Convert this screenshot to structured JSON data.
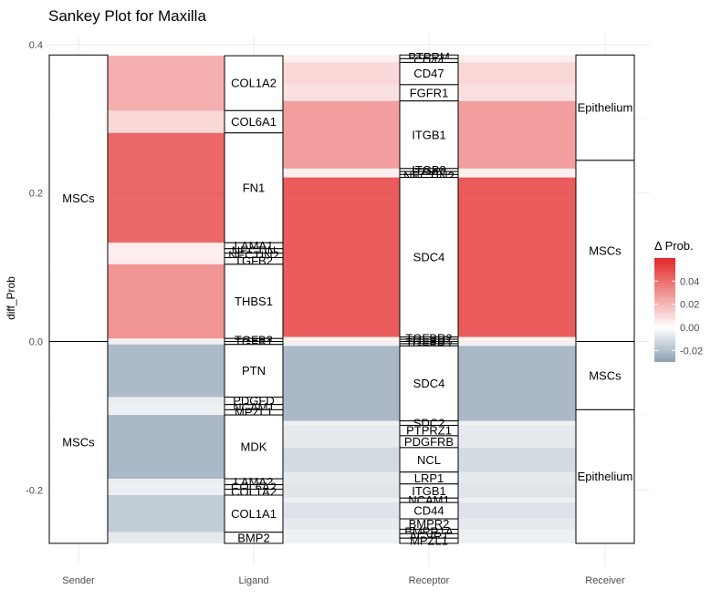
{
  "chart_data": {
    "type": "sankey",
    "title": "Sankey Plot for Maxilla",
    "xlabel": "",
    "ylabel": "diff_Prob",
    "ylim": [
      -0.272,
      0.39
    ],
    "y_ticks": [
      "-0.2",
      "0.0",
      "0.2",
      "0.4"
    ],
    "y_tick_values": [
      -0.2,
      0.0,
      0.2,
      0.4
    ],
    "stages": [
      "Sender",
      "Ligand",
      "Receptor",
      "Receiver"
    ],
    "grid": true,
    "legend": {
      "title": "Δ Prob.",
      "position": "right",
      "range": [
        -0.03,
        0.06
      ],
      "ticks": [
        "0.04",
        "0.02",
        "0.00",
        "-0.02"
      ],
      "tick_values": [
        0.04,
        0.02,
        0.0,
        -0.02
      ],
      "colors": {
        "low": "#8da0b4",
        "mid": "#ffffff",
        "high": "#e32626"
      }
    },
    "nodes": [
      {
        "stage": 0,
        "label": "MSCs",
        "y0": 0.0,
        "y1": 0.386
      },
      {
        "stage": 0,
        "label": "MSCs",
        "y0": -0.272,
        "y1": 0.0
      },
      {
        "stage": 1,
        "label": "COL1A2",
        "y0": 0.311,
        "y1": 0.385
      },
      {
        "stage": 1,
        "label": "COL6A1",
        "y0": 0.281,
        "y1": 0.311
      },
      {
        "stage": 1,
        "label": "FN1",
        "y0": 0.133,
        "y1": 0.281
      },
      {
        "stage": 1,
        "label": "LAMA1",
        "y0": 0.125,
        "y1": 0.133
      },
      {
        "stage": 1,
        "label": "NECTIN",
        "y0": 0.119,
        "y1": 0.125
      },
      {
        "stage": 1,
        "label": "NECTIN2",
        "y0": 0.113,
        "y1": 0.119
      },
      {
        "stage": 1,
        "label": "TGFB2",
        "y0": 0.104,
        "y1": 0.113
      },
      {
        "stage": 1,
        "label": "THBS1",
        "y0": 0.004,
        "y1": 0.104
      },
      {
        "stage": 1,
        "label": "TGFB3",
        "y0": 0.0,
        "y1": 0.004
      },
      {
        "stage": 1,
        "label": "TGFB1",
        "y0": -0.004,
        "y1": 0.0
      },
      {
        "stage": 1,
        "label": "PTN",
        "y0": -0.075,
        "y1": -0.004
      },
      {
        "stage": 1,
        "label": "PDGFD",
        "y0": -0.085,
        "y1": -0.075
      },
      {
        "stage": 1,
        "label": "NCAM1",
        "y0": -0.092,
        "y1": -0.085
      },
      {
        "stage": 1,
        "label": "MPZL1",
        "y0": -0.099,
        "y1": -0.092
      },
      {
        "stage": 1,
        "label": "MDK",
        "y0": -0.185,
        "y1": -0.099
      },
      {
        "stage": 1,
        "label": "LAMA2",
        "y0": -0.193,
        "y1": -0.185
      },
      {
        "stage": 1,
        "label": "COL6A2",
        "y0": -0.199,
        "y1": -0.193
      },
      {
        "stage": 1,
        "label": "COL1A2",
        "y0": -0.207,
        "y1": -0.199
      },
      {
        "stage": 1,
        "label": "COL1A1",
        "y0": -0.257,
        "y1": -0.207
      },
      {
        "stage": 1,
        "label": "BMP2",
        "y0": -0.272,
        "y1": -0.257
      },
      {
        "stage": 2,
        "label": "PTPRM",
        "y0": 0.381,
        "y1": 0.386
      },
      {
        "stage": 2,
        "label": "CD44",
        "y0": 0.376,
        "y1": 0.381
      },
      {
        "stage": 2,
        "label": "CD47",
        "y0": 0.346,
        "y1": 0.376
      },
      {
        "stage": 2,
        "label": "FGFR1",
        "y0": 0.324,
        "y1": 0.346
      },
      {
        "stage": 2,
        "label": "ITGB1",
        "y0": 0.233,
        "y1": 0.324
      },
      {
        "stage": 2,
        "label": "ITGB8",
        "y0": 0.229,
        "y1": 0.233
      },
      {
        "stage": 2,
        "label": "ITGAV",
        "y0": 0.225,
        "y1": 0.229
      },
      {
        "stage": 2,
        "label": "NECTIN2",
        "y0": 0.221,
        "y1": 0.225
      },
      {
        "stage": 2,
        "label": "SDC4",
        "y0": 0.006,
        "y1": 0.221
      },
      {
        "stage": 2,
        "label": "TGFBR2",
        "y0": 0.003,
        "y1": 0.006
      },
      {
        "stage": 2,
        "label": "TGFBR1",
        "y0": 0.0,
        "y1": 0.003
      },
      {
        "stage": 2,
        "label": "TGFBR1",
        "y0": -0.003,
        "y1": 0.0
      },
      {
        "stage": 2,
        "label": "TGFBR2",
        "y0": -0.006,
        "y1": -0.003
      },
      {
        "stage": 2,
        "label": "SDC4",
        "y0": -0.107,
        "y1": -0.006
      },
      {
        "stage": 2,
        "label": "SDC2",
        "y0": -0.113,
        "y1": -0.107
      },
      {
        "stage": 2,
        "label": "PTPRZ1",
        "y0": -0.127,
        "y1": -0.113
      },
      {
        "stage": 2,
        "label": "PDGFRB",
        "y0": -0.143,
        "y1": -0.127
      },
      {
        "stage": 2,
        "label": "NCL",
        "y0": -0.176,
        "y1": -0.143
      },
      {
        "stage": 2,
        "label": "LRP1",
        "y0": -0.192,
        "y1": -0.176
      },
      {
        "stage": 2,
        "label": "ITGB1",
        "y0": -0.211,
        "y1": -0.192
      },
      {
        "stage": 2,
        "label": "NCAM1",
        "y0": -0.217,
        "y1": -0.211
      },
      {
        "stage": 2,
        "label": "CD44",
        "y0": -0.239,
        "y1": -0.217
      },
      {
        "stage": 2,
        "label": "BMPR2",
        "y0": -0.253,
        "y1": -0.239
      },
      {
        "stage": 2,
        "label": "BMPR1A",
        "y0": -0.259,
        "y1": -0.253
      },
      {
        "stage": 2,
        "label": "ACVR1",
        "y0": -0.265,
        "y1": -0.259
      },
      {
        "stage": 2,
        "label": "MPZL1",
        "y0": -0.272,
        "y1": -0.265
      },
      {
        "stage": 3,
        "label": "Epithelium",
        "y0": 0.244,
        "y1": 0.386
      },
      {
        "stage": 3,
        "label": "MSCs",
        "y0": 0.0,
        "y1": 0.244
      },
      {
        "stage": 3,
        "label": "MSCs",
        "y0": -0.092,
        "y1": 0.0
      },
      {
        "stage": 3,
        "label": "Epithelium",
        "y0": -0.272,
        "y1": -0.092
      }
    ]
  }
}
